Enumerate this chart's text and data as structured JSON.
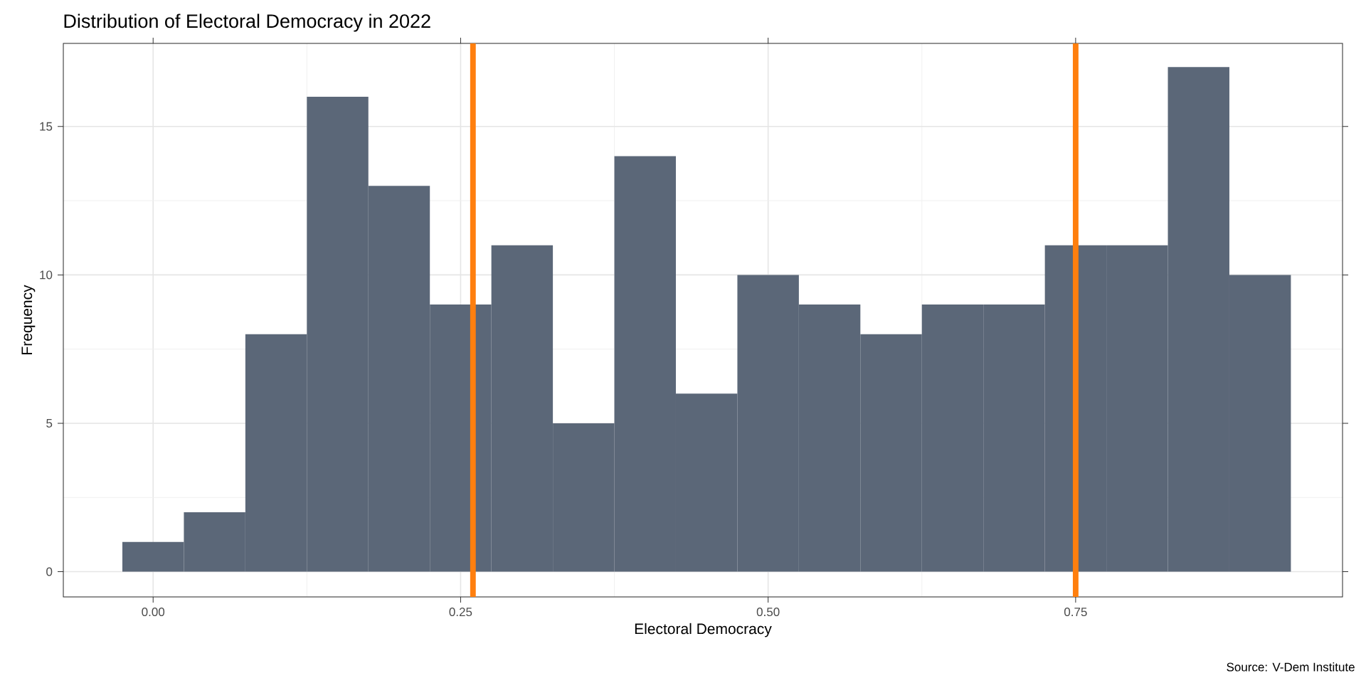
{
  "chart_data": {
    "type": "histogram",
    "title": "Distribution of Electoral Democracy in 2022",
    "xlabel": "Electoral Democracy",
    "ylabel": "Frequency",
    "annotations": [
      "Source: V-Dem Institute"
    ],
    "bins": [
      -0.025,
      0.025,
      0.075,
      0.125,
      0.175,
      0.225,
      0.275,
      0.325,
      0.375,
      0.425,
      0.475,
      0.525,
      0.575,
      0.625,
      0.675,
      0.725,
      0.775,
      0.825,
      0.875,
      0.925
    ],
    "values": [
      1,
      2,
      8,
      16,
      13,
      9,
      11,
      5,
      14,
      6,
      10,
      9,
      8,
      9,
      9,
      11,
      11,
      17,
      10
    ],
    "color": "#5b6778",
    "xlim": [
      -0.073,
      0.967
    ],
    "ylim": [
      -0.85,
      17.8
    ],
    "xticks": [
      {
        "value": 0,
        "label": "0.00"
      },
      {
        "value": 0.25,
        "label": "0.25"
      },
      {
        "value": 0.5,
        "label": "0.50"
      },
      {
        "value": 0.75,
        "label": "0.75"
      }
    ],
    "yticks": [
      0,
      5,
      10,
      15
    ],
    "ref_lines": [
      {
        "axis": "x",
        "value": 0.26,
        "color": "#ff7f0e"
      },
      {
        "axis": "x",
        "value": 0.75,
        "color": "#ff7f0e"
      }
    ],
    "grid": true
  }
}
